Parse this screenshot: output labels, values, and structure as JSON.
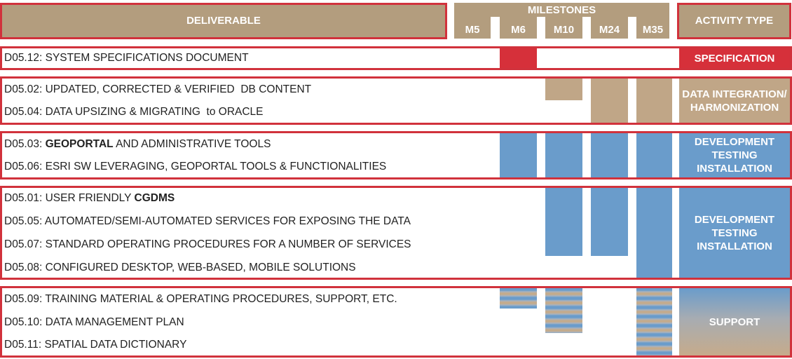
{
  "header": {
    "deliverable": "DELIVERABLE",
    "milestones": "MILESTONES",
    "activity_type": "ACTIVITY TYPE",
    "milestone_labels": [
      "M5",
      "M6",
      "M10",
      "M24",
      "M35"
    ]
  },
  "groups": [
    {
      "activity": "SPECIFICATION",
      "rows": [
        {
          "code": "D05.12:",
          "text": "SYSTEM SPECIFICATIONS DOCUMENT"
        }
      ]
    },
    {
      "activity": "DATA INTEGRATION/ HARMONIZATION",
      "rows": [
        {
          "code": "D05.02:",
          "text": "UPDATED, CORRECTED & VERIFIED  DB CONTENT"
        },
        {
          "code": "D05.04:",
          "text": "DATA UPSIZING & MIGRATING  to ORACLE"
        }
      ]
    },
    {
      "activity": "DEVELOPMENT TESTING INSTALLATION",
      "rows": [
        {
          "code": "D05.03:",
          "bold": "GEOPORTAL",
          "text": " AND ADMINISTRATIVE TOOLS"
        },
        {
          "code": "D05.06:",
          "text": "ESRI SW LEVERAGING, GEOPORTAL TOOLS & FUNCTIONALITIES"
        }
      ]
    },
    {
      "activity": "DEVELOPMENT TESTING INSTALLATION",
      "rows": [
        {
          "code": "D05.01:",
          "text": "USER FRIENDLY ",
          "bold": "CGDMS"
        },
        {
          "code": "D05.05:",
          "text": "AUTOMATED/SEMI-AUTOMATED SERVICES FOR EXPOSING THE DATA"
        },
        {
          "code": "D05.07:",
          "text": "STANDARD OPERATING PROCEDURES FOR A NUMBER OF SERVICES"
        },
        {
          "code": "D05.08:",
          "text": "CONFIGURED DESKTOP, WEB-BASED, MOBILE SOLUTIONS"
        }
      ]
    },
    {
      "activity": "SUPPORT",
      "rows": [
        {
          "code": "D05.09:",
          "text": "TRAINING MATERIAL & OPERATING PROCEDURES, SUPPORT, ETC."
        },
        {
          "code": "D05.10:",
          "text": "DATA MANAGEMENT PLAN"
        },
        {
          "code": "D05.11:",
          "text": "SPATIAL DATA DICTIONARY"
        }
      ]
    }
  ],
  "colors": {
    "frame": "#d1323c",
    "header": "#b39d7e",
    "development": "#6a9ccb",
    "data_integration": "#c0a687",
    "specification": "#d6303a"
  }
}
